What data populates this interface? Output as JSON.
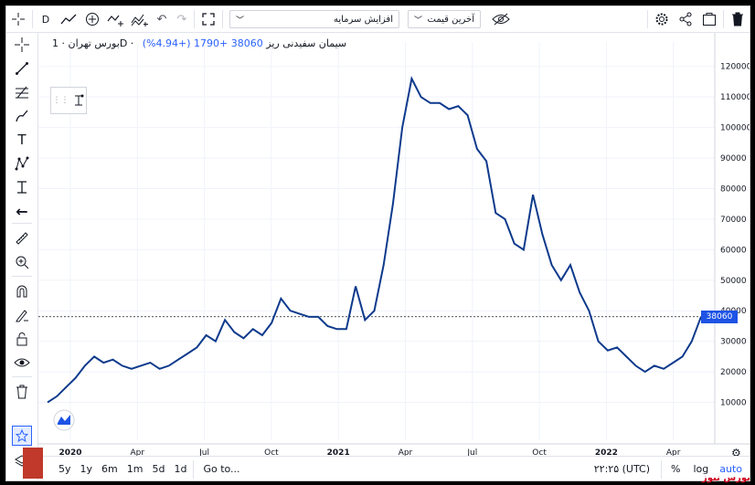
{
  "toolbar": {
    "interval": "D",
    "dropdown_capital": "افزایش سرمایه",
    "dropdown_price": "آخرین قیمت",
    "icons": [
      "line-chart-icon",
      "add-indicator-icon",
      "compare-icon",
      "indicators-icon",
      "undo-icon",
      "redo-icon",
      "fullscreen-icon",
      "eye-off-icon",
      "settings-icon",
      "share-icon",
      "screenshot-icon",
      "trash-icon"
    ]
  },
  "legend": {
    "symbol": "بورس تهران · 1D · سیمان سفیدنی ریز",
    "values": "38060  +1790 (+4.94%)"
  },
  "price_badge": "38060",
  "bottom": {
    "ranges": [
      "5y",
      "1y",
      "6m",
      "1m",
      "5d",
      "1d"
    ],
    "goto": "Go to...",
    "time": "۲۲:۲۵ (UTC)",
    "percent": "%",
    "log": "log",
    "auto": "auto"
  },
  "watermark": "بورس نیوز",
  "chart_data": {
    "type": "line",
    "x_labels": [
      "2020",
      "Apr",
      "Jul",
      "Oct",
      "2021",
      "Apr",
      "Jul",
      "Oct",
      "2022",
      "Apr"
    ],
    "y_ticks": [
      10000,
      20000,
      30000,
      40000,
      50000,
      60000,
      70000,
      80000,
      90000,
      100000,
      110000,
      120000
    ],
    "ylim": [
      0,
      125000
    ],
    "last_price": 38060,
    "series": [
      {
        "values": [
          10000,
          12000,
          15000,
          18000,
          22000,
          25000,
          23000,
          24000,
          22000,
          21000,
          22000,
          23000,
          21000,
          22000,
          24000,
          26000,
          28000,
          32000,
          30000,
          37000,
          33000,
          31000,
          34000,
          32000,
          36000,
          44000,
          40000,
          39000,
          38000,
          38000,
          35000,
          34000,
          34000,
          48000,
          37000,
          40000,
          55000,
          75000,
          100000,
          116000,
          110000,
          108000,
          108000,
          106000,
          107000,
          104000,
          93000,
          89000,
          72000,
          70000,
          62000,
          60000,
          78000,
          65000,
          55000,
          50000,
          55000,
          46000,
          40000,
          30000,
          27000,
          28000,
          25000,
          22000,
          20000,
          22000,
          21000,
          23000,
          25000,
          30000,
          38060
        ]
      }
    ]
  }
}
